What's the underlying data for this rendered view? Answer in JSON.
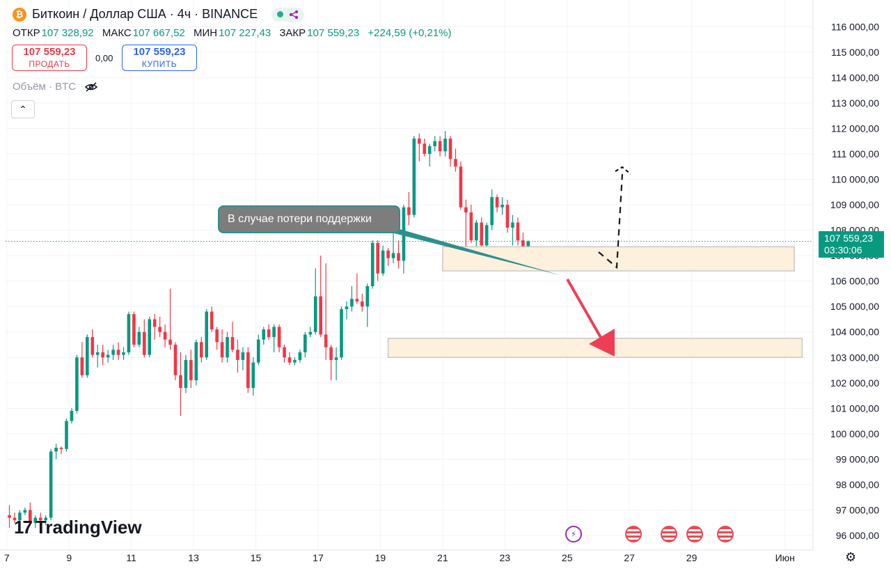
{
  "header": {
    "coin_icon": "bitcoin-icon",
    "coin_glyph": "₿",
    "title": "Биткоин / Доллар США · 4ч · BINANCE",
    "status_icon": "share-icon"
  },
  "ohlc": {
    "open_label": "ОТКР",
    "open": "107 328,92",
    "high_label": "МАКС",
    "high": "107 667,52",
    "low_label": "МИН",
    "low": "107 227,43",
    "close_label": "ЗАКР",
    "close": "107 559,23",
    "change": "+224,59 (+0,21%)"
  },
  "trade": {
    "sell_price": "107 559,23",
    "sell_label": "ПРОДАТЬ",
    "spread": "0,00",
    "buy_price": "107 559,23",
    "buy_label": "КУПИТЬ"
  },
  "volume": {
    "label": "Объём · BTC",
    "icon": "eye-off-icon"
  },
  "collapse": {
    "glyph": "⌃"
  },
  "annotation": {
    "text": "В случае потери поддержки"
  },
  "price_tag": {
    "price": "107 559,23",
    "countdown": "03:30:06"
  },
  "logo": {
    "mark": "17",
    "text": "TradingView"
  },
  "colors": {
    "up": "#089981",
    "down": "#f23645",
    "zone": "#fdf0dc",
    "arrow": "#ef3d55"
  },
  "chart_data": {
    "type": "candlestick",
    "y_ticks": [
      96000,
      97000,
      98000,
      99000,
      100000,
      101000,
      102000,
      103000,
      104000,
      105000,
      106000,
      107000,
      108000,
      109000,
      110000,
      111000,
      112000,
      113000,
      114000,
      115000,
      116000
    ],
    "y_tick_labels": [
      "96 000,00",
      "97 000,00",
      "98 000,00",
      "99 000,00",
      "100 000,00",
      "101 000,00",
      "102 000,00",
      "103 000,00",
      "104 000,00",
      "105 000,00",
      "106 000,00",
      "107 000,00",
      "108 000,00",
      "109 000,00",
      "110 000,00",
      "111 000,00",
      "112 000,00",
      "113 000,00",
      "114 000,00",
      "115 000,00",
      "116 000,00"
    ],
    "ylim": [
      95700,
      116500
    ],
    "x_labels": [
      "7",
      "9",
      "11",
      "13",
      "15",
      "17",
      "19",
      "21",
      "23",
      "25",
      "27",
      "29",
      "Июн"
    ],
    "x_label_days": [
      7,
      9,
      11,
      13,
      15,
      17,
      19,
      21,
      23,
      25,
      27,
      29,
      32
    ],
    "xlim_days": [
      6.96,
      32.9
    ],
    "last_price": 107559.23,
    "support_zone_high": [
      106400,
      107350
    ],
    "support_zone_low": [
      103000,
      103750
    ],
    "candles_day_start": 7.0,
    "candles_per_day": 6,
    "candles": [
      [
        96800,
        97200,
        96300,
        96700
      ],
      [
        96700,
        96900,
        96500,
        96600
      ],
      [
        96600,
        97000,
        96400,
        96900
      ],
      [
        96900,
        97100,
        96800,
        97000
      ],
      [
        97000,
        97300,
        96500,
        96500
      ],
      [
        96500,
        96800,
        96300,
        96700
      ],
      [
        96700,
        96900,
        96400,
        96600
      ],
      [
        96600,
        96800,
        96400,
        96700
      ],
      [
        96700,
        99400,
        96600,
        99300
      ],
      [
        99300,
        99600,
        99000,
        99450
      ],
      [
        99450,
        99500,
        99200,
        99400
      ],
      [
        99400,
        100600,
        99300,
        100500
      ],
      [
        100500,
        101000,
        100400,
        100900
      ],
      [
        100900,
        103100,
        100800,
        103000
      ],
      [
        103000,
        103600,
        102200,
        102300
      ],
      [
        102300,
        103900,
        102200,
        103800
      ],
      [
        103800,
        104100,
        103000,
        103100
      ],
      [
        103100,
        103500,
        102600,
        103200
      ],
      [
        103200,
        103500,
        102700,
        103000
      ],
      [
        103000,
        103300,
        102800,
        103100
      ],
      [
        103100,
        103500,
        102900,
        103300
      ],
      [
        103300,
        103600,
        102900,
        103100
      ],
      [
        103100,
        103400,
        102900,
        103200
      ],
      [
        103200,
        104800,
        103100,
        104700
      ],
      [
        104700,
        104800,
        103400,
        103500
      ],
      [
        103500,
        104200,
        103400,
        104000
      ],
      [
        104000,
        104500,
        103000,
        103100
      ],
      [
        103100,
        104600,
        103000,
        104500
      ],
      [
        104500,
        104700,
        103700,
        104200
      ],
      [
        104200,
        104600,
        103800,
        104000
      ],
      [
        104000,
        104300,
        103400,
        103700
      ],
      [
        103700,
        105700,
        103300,
        103500
      ],
      [
        103500,
        103600,
        102100,
        102300
      ],
      [
        102300,
        103200,
        100700,
        101800
      ],
      [
        101800,
        103100,
        101600,
        102900
      ],
      [
        102900,
        103300,
        101800,
        102100
      ],
      [
        102100,
        103700,
        101900,
        103600
      ],
      [
        103600,
        103800,
        102800,
        103000
      ],
      [
        103000,
        104900,
        102900,
        104800
      ],
      [
        104800,
        105000,
        104000,
        104100
      ],
      [
        104100,
        104200,
        103300,
        103600
      ],
      [
        103600,
        104100,
        102800,
        103000
      ],
      [
        103000,
        104000,
        102800,
        103800
      ],
      [
        103800,
        104400,
        103200,
        103300
      ],
      [
        103300,
        103700,
        102400,
        102900
      ],
      [
        102900,
        103400,
        102500,
        103200
      ],
      [
        103200,
        103400,
        101600,
        101800
      ],
      [
        101800,
        103000,
        101500,
        102800
      ],
      [
        102800,
        103900,
        102700,
        103700
      ],
      [
        103700,
        104200,
        103500,
        104100
      ],
      [
        104100,
        104300,
        103700,
        103800
      ],
      [
        103800,
        104300,
        103200,
        104200
      ],
      [
        104200,
        104300,
        103200,
        103400
      ],
      [
        103400,
        103500,
        102800,
        103000
      ],
      [
        103000,
        103200,
        102700,
        102800
      ],
      [
        102800,
        103000,
        102700,
        102900
      ],
      [
        102900,
        103300,
        102800,
        103200
      ],
      [
        103200,
        104000,
        103000,
        103900
      ],
      [
        103900,
        104200,
        103800,
        104000
      ],
      [
        104000,
        106500,
        103900,
        105400
      ],
      [
        105400,
        107000,
        103800,
        103900
      ],
      [
        103900,
        106700,
        102900,
        103400
      ],
      [
        103400,
        103500,
        102100,
        102900
      ],
      [
        102900,
        103400,
        102100,
        103000
      ],
      [
        103000,
        105000,
        102900,
        104900
      ],
      [
        104900,
        105200,
        104500,
        105000
      ],
      [
        105000,
        105800,
        104800,
        105300
      ],
      [
        105300,
        106300,
        105100,
        105200
      ],
      [
        105200,
        105500,
        104800,
        105000
      ],
      [
        105000,
        105900,
        104200,
        105800
      ],
      [
        105800,
        107600,
        105700,
        107500
      ],
      [
        107500,
        107600,
        106000,
        106300
      ],
      [
        106300,
        107400,
        106200,
        107200
      ],
      [
        107200,
        107300,
        106600,
        106900
      ],
      [
        106900,
        108000,
        106700,
        107100
      ],
      [
        107100,
        107600,
        106500,
        106800
      ],
      [
        106800,
        109000,
        106300,
        108900
      ],
      [
        108900,
        109500,
        108200,
        108600
      ],
      [
        108600,
        111700,
        108500,
        111600
      ],
      [
        111600,
        111800,
        110700,
        111400
      ],
      [
        111400,
        111600,
        110900,
        111000
      ],
      [
        111000,
        111400,
        110500,
        111300
      ],
      [
        111300,
        111700,
        111100,
        111500
      ],
      [
        111500,
        111700,
        110900,
        111100
      ],
      [
        111100,
        111900,
        110900,
        111600
      ],
      [
        111600,
        111700,
        110500,
        110800
      ],
      [
        110800,
        111200,
        110300,
        110500
      ],
      [
        110500,
        110700,
        108800,
        108900
      ],
      [
        108900,
        109200,
        107300,
        108700
      ],
      [
        108700,
        109000,
        107500,
        107600
      ],
      [
        107600,
        108400,
        106900,
        108300
      ],
      [
        108300,
        108500,
        107300,
        107400
      ],
      [
        107400,
        108300,
        107200,
        108200
      ],
      [
        108200,
        109600,
        108000,
        109300
      ],
      [
        109300,
        109400,
        108700,
        108900
      ],
      [
        108900,
        109300,
        108600,
        109000
      ],
      [
        109000,
        109200,
        107900,
        108100
      ],
      [
        108100,
        108600,
        107400,
        108300
      ],
      [
        108300,
        108500,
        107400,
        107600
      ],
      [
        107600,
        107900,
        106900,
        107300
      ],
      [
        107300,
        107600,
        107200,
        107559
      ]
    ]
  }
}
